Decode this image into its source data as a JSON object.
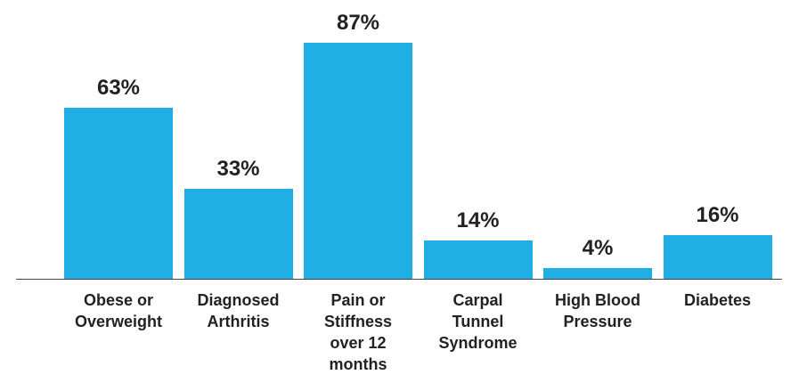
{
  "chart_data": {
    "type": "bar",
    "categories": [
      "Obese or Overweight",
      "Diagnosed Arthritis",
      "Pain or Stiffness over 12 months",
      "Carpal Tunnel Syndrome",
      "High Blood Pressure",
      "Diabetes"
    ],
    "values": [
      63,
      33,
      87,
      14,
      4,
      16
    ],
    "value_labels": [
      "63%",
      "33%",
      "87%",
      "14%",
      "4%",
      "16%"
    ],
    "color": "#1fafe4",
    "ylim": [
      0,
      100
    ]
  }
}
